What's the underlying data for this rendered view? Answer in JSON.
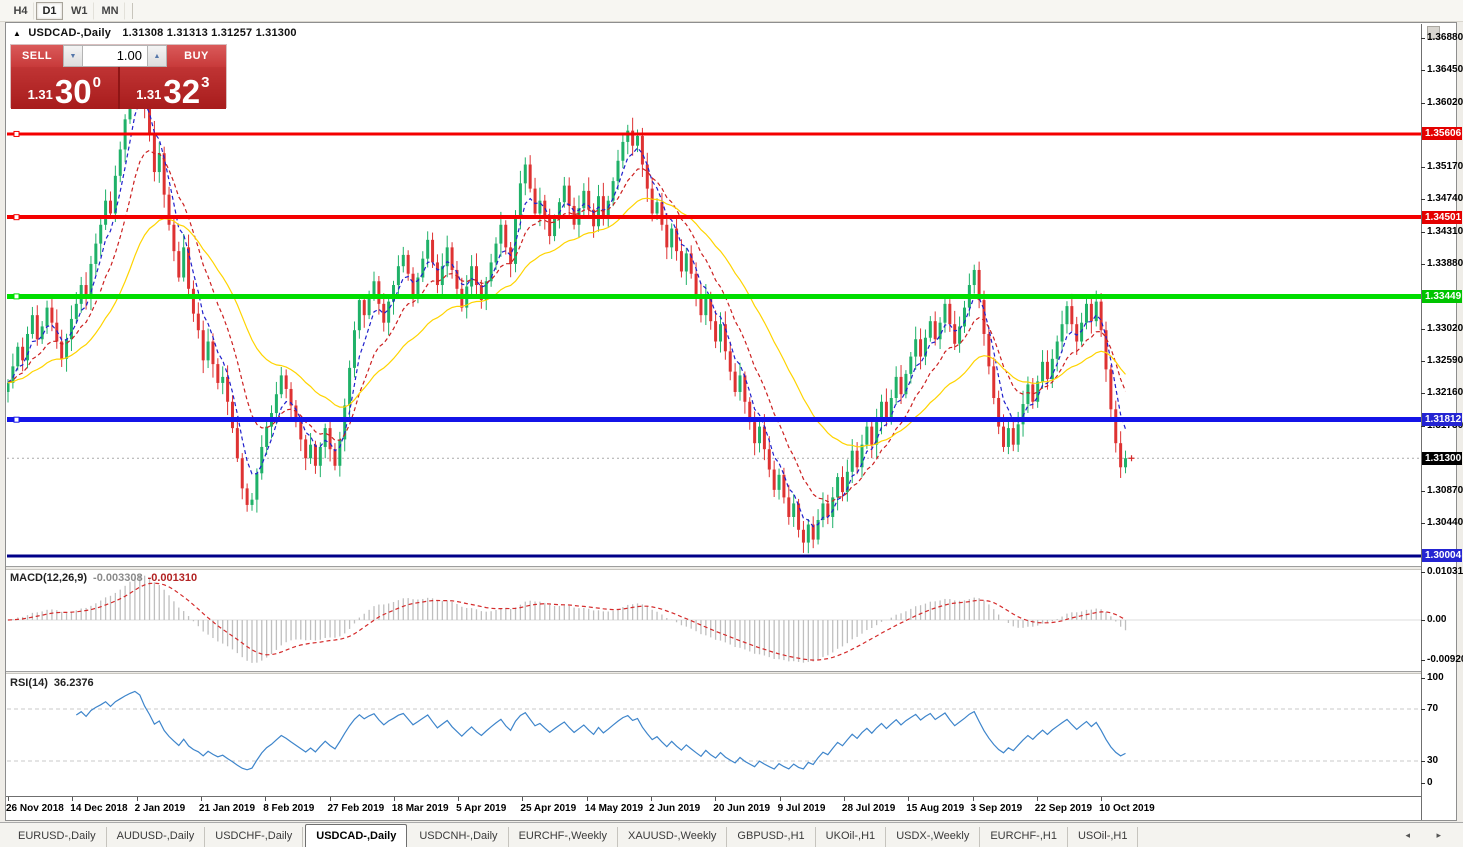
{
  "toolbar": {
    "timeframes": [
      {
        "label": "H4",
        "active": false
      },
      {
        "label": "D1",
        "active": true
      },
      {
        "label": "W1",
        "active": false
      },
      {
        "label": "MN",
        "active": false
      }
    ]
  },
  "window": {
    "title_symbol": "USDCAD-,Daily",
    "title_ohlc": "1.31308 1.31313 1.31257 1.31300"
  },
  "trade_panel": {
    "sell_label": "SELL",
    "buy_label": "BUY",
    "volume": "1.00",
    "sell_price": {
      "prefix": "1.31",
      "big": "30",
      "sup": "0"
    },
    "buy_price": {
      "prefix": "1.31",
      "big": "32",
      "sup": "3"
    }
  },
  "indicators": {
    "macd_name": "MACD(12,26,9)",
    "macd_v1": "-0.003308",
    "macd_v2": "-0.001310",
    "rsi_name": "RSI(14)",
    "rsi_value": "36.2376"
  },
  "price_axis": {
    "labels": [
      "1.36880",
      "1.36450",
      "1.36020",
      "1.35170",
      "1.34740",
      "1.34310",
      "1.33880",
      "1.33020",
      "1.32590",
      "1.32160",
      "1.31730",
      "1.30870",
      "1.30440"
    ],
    "badges": [
      {
        "text": "1.35606",
        "type": "red"
      },
      {
        "text": "1.34501",
        "type": "red"
      },
      {
        "text": "1.33449",
        "type": "green"
      },
      {
        "text": "1.31812",
        "type": "blue"
      },
      {
        "text": "1.31300",
        "type": "black"
      },
      {
        "text": "1.30004",
        "type": "blue"
      }
    ]
  },
  "macd_axis": [
    "0.010311",
    "0.00",
    "-0.009203"
  ],
  "rsi_axis": [
    "100",
    "70",
    "30",
    "0"
  ],
  "dates": [
    "26 Nov 2018",
    "14 Dec 2018",
    "2 Jan 2019",
    "21 Jan 2019",
    "8 Feb 2019",
    "27 Feb 2019",
    "18 Mar 2019",
    "5 Apr 2019",
    "25 Apr 2019",
    "14 May 2019",
    "2 Jun 2019",
    "20 Jun 2019",
    "9 Jul 2019",
    "28 Jul 2019",
    "15 Aug 2019",
    "3 Sep 2019",
    "22 Sep 2019",
    "10 Oct 2019"
  ],
  "tabs": [
    {
      "label": "EURUSD-,Daily",
      "active": false
    },
    {
      "label": "AUDUSD-,Daily",
      "active": false
    },
    {
      "label": "USDCHF-,Daily",
      "active": false
    },
    {
      "label": "USDCAD-,Daily",
      "active": true
    },
    {
      "label": "USDCNH-,Daily",
      "active": false
    },
    {
      "label": "EURCHF-,Weekly",
      "active": false
    },
    {
      "label": "XAUUSD-,Weekly",
      "active": false
    },
    {
      "label": "GBPUSD-,H1",
      "active": false
    },
    {
      "label": "UKOil-,H1",
      "active": false
    },
    {
      "label": "USDX-,Weekly",
      "active": false
    },
    {
      "label": "EURCHF-,H1",
      "active": false
    },
    {
      "label": "USOil-,H1",
      "active": false
    }
  ],
  "tab_arrows": "◂ ▸",
  "chart_data": {
    "type": "candlestick",
    "symbol": "USDCAD",
    "timeframe": "Daily",
    "title": "USDCAD-,Daily",
    "ohlc_header": {
      "open": 1.31308,
      "high": 1.31313,
      "low": 1.31257,
      "close": 1.313
    },
    "y_axis_ticks": [
      1.3688,
      1.3645,
      1.3602,
      1.3517,
      1.3474,
      1.3431,
      1.3388,
      1.3302,
      1.3259,
      1.3216,
      1.3173,
      1.3087,
      1.3044
    ],
    "x_tick_dates": [
      "26 Nov 2018",
      "14 Dec 2018",
      "2 Jan 2019",
      "21 Jan 2019",
      "8 Feb 2019",
      "27 Feb 2019",
      "18 Mar 2019",
      "5 Apr 2019",
      "25 Apr 2019",
      "14 May 2019",
      "2 Jun 2019",
      "20 Jun 2019",
      "9 Jul 2019",
      "28 Jul 2019",
      "15 Aug 2019",
      "3 Sep 2019",
      "22 Sep 2019",
      "10 Oct 2019"
    ],
    "closes": [
      1.323,
      1.3252,
      1.3278,
      1.326,
      1.3295,
      1.332,
      1.3288,
      1.3305,
      1.333,
      1.331,
      1.3285,
      1.3262,
      1.3288,
      1.3315,
      1.3335,
      1.336,
      1.3342,
      1.3388,
      1.3415,
      1.344,
      1.3472,
      1.3455,
      1.3505,
      1.354,
      1.358,
      1.362,
      1.3655,
      1.3642,
      1.3598,
      1.356,
      1.351,
      1.3535,
      1.348,
      1.344,
      1.3405,
      1.337,
      1.341,
      1.3355,
      1.3322,
      1.33,
      1.326,
      1.3285,
      1.3255,
      1.323,
      1.3238,
      1.3205,
      1.317,
      1.313,
      1.309,
      1.3068,
      1.3075,
      1.311,
      1.3145,
      1.3172,
      1.319,
      1.3215,
      1.324,
      1.3222,
      1.32,
      1.3178,
      1.3155,
      1.313,
      1.3148,
      1.312,
      1.3145,
      1.317,
      1.3142,
      1.312,
      1.3155,
      1.32,
      1.325,
      1.33,
      1.334,
      1.332,
      1.3345,
      1.3365,
      1.3335,
      1.331,
      1.3338,
      1.336,
      1.3385,
      1.34,
      1.3375,
      1.3348,
      1.337,
      1.3395,
      1.342,
      1.339,
      1.336,
      1.3385,
      1.341,
      1.338,
      1.3355,
      1.333,
      1.3358,
      1.3385,
      1.336,
      1.334,
      1.3365,
      1.339,
      1.3415,
      1.344,
      1.341,
      1.3388,
      1.3448,
      1.3495,
      1.352,
      1.3488,
      1.3455,
      1.3472,
      1.3448,
      1.3425,
      1.3448,
      1.347,
      1.3492,
      1.3465,
      1.344,
      1.3462,
      1.3485,
      1.346,
      1.3438,
      1.3478,
      1.345,
      1.3472,
      1.3498,
      1.3525,
      1.355,
      1.3565,
      1.3545,
      1.3558,
      1.352,
      1.3488,
      1.3455,
      1.347,
      1.344,
      1.341,
      1.3435,
      1.3405,
      1.3378,
      1.3402,
      1.3375,
      1.3348,
      1.332,
      1.3345,
      1.3312,
      1.3285,
      1.3308,
      1.3272,
      1.3245,
      1.3218,
      1.324,
      1.3205,
      1.3178,
      1.315,
      1.3172,
      1.3142,
      1.3115,
      1.3088,
      1.3108,
      1.3078,
      1.3052,
      1.307,
      1.3035,
      1.3018,
      1.3042,
      1.3022,
      1.3048,
      1.307,
      1.3052,
      1.3078,
      1.3105,
      1.3085,
      1.3112,
      1.314,
      1.3118,
      1.3148,
      1.3172,
      1.3148,
      1.3178,
      1.3205,
      1.3182,
      1.321,
      1.3238,
      1.3215,
      1.3242,
      1.3265,
      1.3288,
      1.3265,
      1.329,
      1.3312,
      1.3288,
      1.331,
      1.3335,
      1.3308,
      1.3282,
      1.3305,
      1.333,
      1.336,
      1.338,
      1.334,
      1.3295,
      1.3252,
      1.321,
      1.3172,
      1.3145,
      1.317,
      1.3148,
      1.3175,
      1.3202,
      1.3228,
      1.3205,
      1.3232,
      1.3258,
      1.3235,
      1.3262,
      1.3285,
      1.3308,
      1.3332,
      1.3308,
      1.3285,
      1.331,
      1.3335,
      1.3312,
      1.3338,
      1.33,
      1.3248,
      1.3195,
      1.315,
      1.3118,
      1.313
    ],
    "hlines": [
      {
        "price": 1.35606,
        "color": "#F40000",
        "width": 3
      },
      {
        "price": 1.34501,
        "color": "#F40000",
        "width": 4
      },
      {
        "price": 1.33449,
        "color": "#00DE00",
        "width": 5
      },
      {
        "price": 1.31812,
        "color": "#1414E8",
        "width": 5
      },
      {
        "price": 1.30004,
        "color": "#000088",
        "width": 3
      }
    ],
    "current_price": 1.313,
    "candle_colors": {
      "up": "#1FB168",
      "down": "#DE3232"
    },
    "moving_averages": [
      {
        "period": 5,
        "color": "#2020CC",
        "style": "dashed"
      },
      {
        "period": 12,
        "color": "#CC2020",
        "style": "dashed"
      },
      {
        "period": 30,
        "color": "#FFD400",
        "style": "solid"
      }
    ],
    "macd": {
      "fast": 12,
      "slow": 26,
      "signal": 9,
      "last_macd": -0.003308,
      "last_signal": -0.00131,
      "scale_max": 0.010311,
      "scale_min": -0.009203,
      "histogram_color": "#BFBFBF",
      "signal_color": "#D42B2B"
    },
    "rsi": {
      "period": 14,
      "last": 36.2376,
      "levels": [
        70,
        30
      ],
      "scale": [
        0,
        100
      ],
      "line_color": "#3E85CB"
    }
  }
}
